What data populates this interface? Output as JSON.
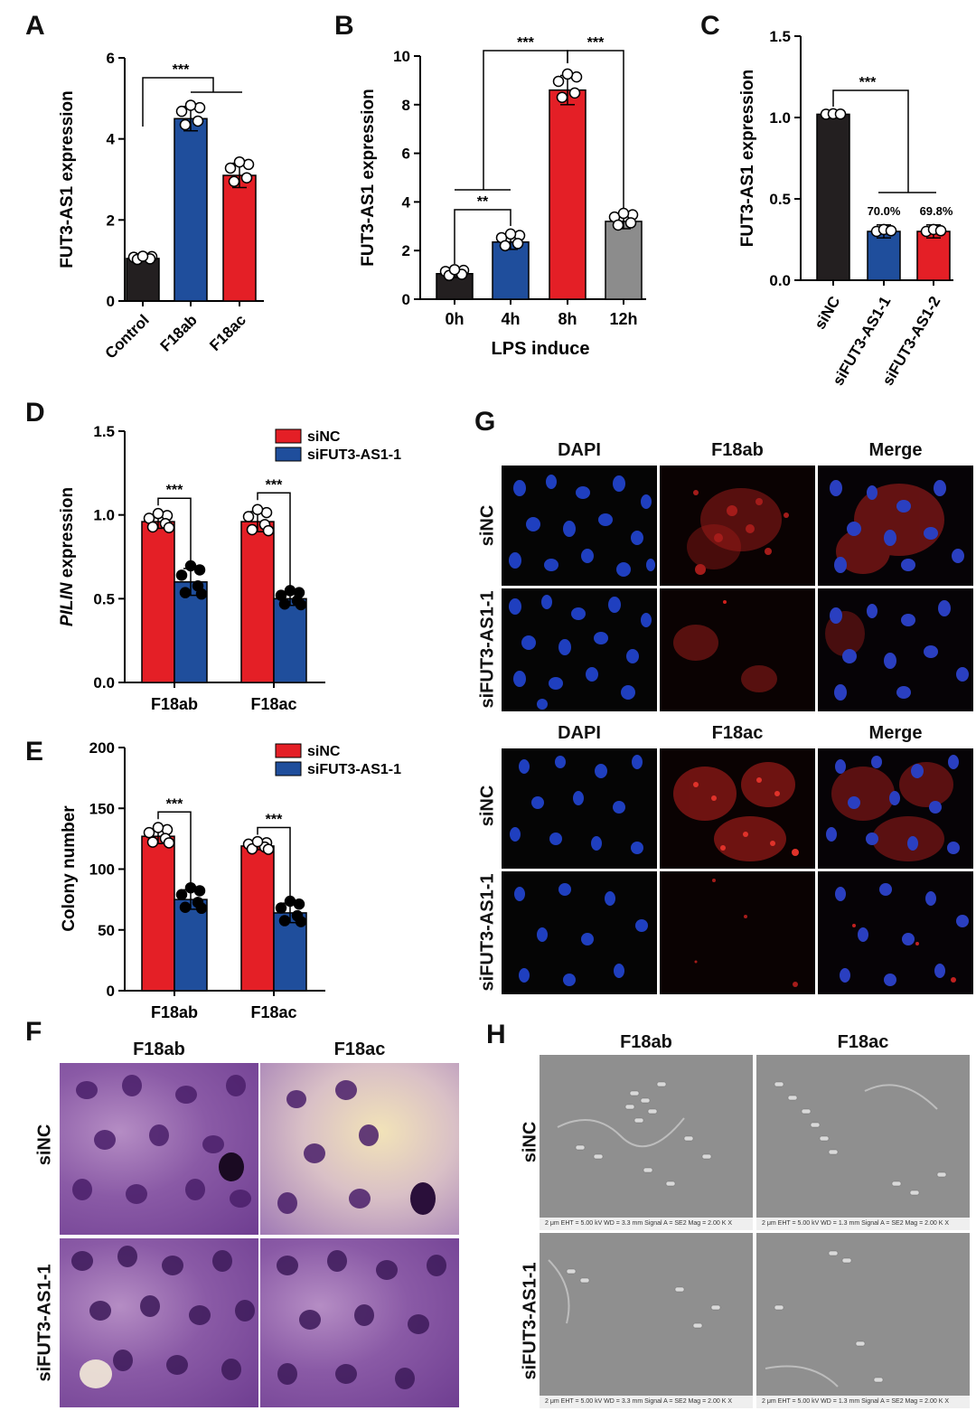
{
  "panels": {
    "A": {
      "letter": "A",
      "ylabel": "FUT3-AS1 expression",
      "yticks": [
        "0",
        "2",
        "4",
        "6"
      ],
      "categories": [
        "Control",
        "F18ab",
        "F18ac"
      ],
      "sig": [
        "***"
      ]
    },
    "B": {
      "letter": "B",
      "ylabel": "FUT3-AS1 expression",
      "xlabel": "LPS induce",
      "yticks": [
        "0",
        "2",
        "4",
        "6",
        "8",
        "10"
      ],
      "categories": [
        "0h",
        "4h",
        "8h",
        "12h"
      ],
      "sig": [
        "**",
        "***",
        "***"
      ]
    },
    "C": {
      "letter": "C",
      "ylabel": "FUT3-AS1 expression",
      "yticks": [
        "0.0",
        "0.5",
        "1.0",
        "1.5"
      ],
      "categories": [
        "siNC",
        "siFUT3-AS1-1",
        "siFUT3-AS1-2"
      ],
      "sig": [
        "***"
      ],
      "pct": [
        "70.0%",
        "69.8%"
      ]
    },
    "D": {
      "letter": "D",
      "ylabel_italic": "PILIN",
      "ylabel_rest": " expression",
      "yticks": [
        "0.0",
        "0.5",
        "1.0",
        "1.5"
      ],
      "groups": [
        "F18ab",
        "F18ac"
      ],
      "legend": [
        "siNC",
        "siFUT3-AS1-1"
      ],
      "sig": [
        "***",
        "***"
      ]
    },
    "E": {
      "letter": "E",
      "ylabel": "Colony number",
      "yticks": [
        "0",
        "50",
        "100",
        "150",
        "200"
      ],
      "groups": [
        "F18ab",
        "F18ac"
      ],
      "legend": [
        "siNC",
        "siFUT3-AS1-1"
      ],
      "sig": [
        "***",
        "***"
      ]
    },
    "F": {
      "letter": "F",
      "cols": [
        "F18ab",
        "F18ac"
      ],
      "rows": [
        "siNC",
        "siFUT3-AS1-1"
      ]
    },
    "G": {
      "letter": "G",
      "cols_top": [
        "DAPI",
        "F18ab",
        "Merge"
      ],
      "cols_bottom": [
        "DAPI",
        "F18ac",
        "Merge"
      ],
      "rows": [
        "siNC",
        "siFUT3-AS1-1",
        "siNC",
        "siFUT3-AS1-1"
      ]
    },
    "H": {
      "letter": "H",
      "cols": [
        "F18ab",
        "F18ac"
      ],
      "rows": [
        "siNC",
        "siFUT3-AS1-1"
      ],
      "scalebar_text": [
        "2 μm      EHT = 5.00 kV    WD = 3.3 mm    Signal A = SE2        Mag = 2.00 K X",
        "2 μm      EHT = 5.00 kV    WD = 1.3 mm    Signal A = SE2        Mag = 2.00 K X"
      ]
    }
  },
  "colors": {
    "black": "#231f20",
    "blue": "#1f4e9c",
    "red": "#e41f26",
    "gray": "#8c8c8c"
  },
  "chart_data": [
    {
      "type": "bar",
      "panel": "A",
      "categories": [
        "Control",
        "F18ab",
        "F18ac"
      ],
      "values": [
        1.05,
        4.5,
        3.1
      ],
      "errors": [
        0.05,
        0.3,
        0.3
      ],
      "ylabel": "FUT3-AS1 expression",
      "ylim": [
        0,
        6
      ]
    },
    {
      "type": "bar",
      "panel": "B",
      "categories": [
        "0h",
        "4h",
        "8h",
        "12h"
      ],
      "values": [
        1.05,
        2.35,
        8.6,
        3.2
      ],
      "errors": [
        0.15,
        0.3,
        0.6,
        0.3
      ],
      "xlabel": "LPS induce",
      "ylabel": "FUT3-AS1 expression",
      "ylim": [
        0,
        10
      ]
    },
    {
      "type": "bar",
      "panel": "C",
      "categories": [
        "siNC",
        "siFUT3-AS1-1",
        "siFUT3-AS1-2"
      ],
      "values": [
        1.02,
        0.3,
        0.3
      ],
      "errors": [
        0.01,
        0.04,
        0.04
      ],
      "ylabel": "FUT3-AS1 expression",
      "ylim": [
        0,
        1.5
      ]
    },
    {
      "type": "bar",
      "panel": "D",
      "categories": [
        "F18ab",
        "F18ac"
      ],
      "series": [
        {
          "name": "siNC",
          "values": [
            0.96,
            0.96
          ]
        },
        {
          "name": "siFUT3-AS1-1",
          "values": [
            0.6,
            0.5
          ]
        }
      ],
      "errors": [
        [
          0.04,
          0.06
        ],
        [
          0.08,
          0.04
        ]
      ],
      "ylim": [
        0,
        1.5
      ]
    },
    {
      "type": "bar",
      "panel": "E",
      "categories": [
        "F18ab",
        "F18ac"
      ],
      "series": [
        {
          "name": "siNC",
          "values": [
            127,
            119
          ]
        },
        {
          "name": "siFUT3-AS1-1",
          "values": [
            75,
            64
          ]
        }
      ],
      "errors": [
        [
          6,
          3
        ],
        [
          8,
          8
        ]
      ],
      "ylabel": "Colony number",
      "ylim": [
        0,
        200
      ]
    }
  ]
}
